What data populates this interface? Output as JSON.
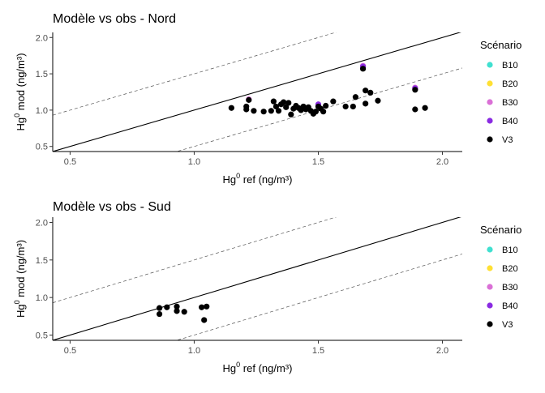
{
  "chart_data": [
    {
      "type": "scatter",
      "title": "Modèle vs obs - Nord",
      "xlabel": {
        "base": "Hg",
        "sup": "0",
        "rest": " ref (ng/m³)"
      },
      "ylabel": {
        "base": "Hg",
        "sup": "0",
        "rest": " mod (ng/m³)"
      },
      "xlim": [
        0.43,
        2.08
      ],
      "ylim": [
        0.43,
        2.07
      ],
      "xticks": [
        "0.5",
        "1.0",
        "1.5",
        "2.0"
      ],
      "yticks": [
        "0.5",
        "1.0",
        "1.5",
        "2.0"
      ],
      "reference_lines": [
        {
          "style": "solid",
          "slope": 1,
          "intercept": 0
        },
        {
          "style": "dashed",
          "slope": 1,
          "intercept": 0.5
        },
        {
          "style": "dashed",
          "slope": 1,
          "intercept": -0.5
        }
      ],
      "legend_title": "Scénario",
      "legend_position": "right",
      "series": [
        {
          "name": "B10",
          "color": "#40E0D0",
          "points": []
        },
        {
          "name": "B20",
          "color": "#FFE033",
          "points": []
        },
        {
          "name": "B30",
          "color": "#DA70D6",
          "points": [
            [
              1.68,
              1.61
            ],
            [
              1.22,
              1.15
            ],
            [
              1.89,
              1.31
            ]
          ]
        },
        {
          "name": "B40",
          "color": "#8A2BE2",
          "points": [
            [
              1.68,
              1.6
            ],
            [
              1.89,
              1.3
            ],
            [
              1.5,
              1.08
            ]
          ]
        },
        {
          "name": "V3",
          "color": "#000000",
          "points": [
            [
              1.15,
              1.03
            ],
            [
              1.21,
              1.05
            ],
            [
              1.21,
              1.01
            ],
            [
              1.22,
              1.14
            ],
            [
              1.24,
              0.99
            ],
            [
              1.28,
              0.98
            ],
            [
              1.31,
              0.99
            ],
            [
              1.32,
              1.12
            ],
            [
              1.33,
              1.05
            ],
            [
              1.34,
              0.99
            ],
            [
              1.35,
              1.08
            ],
            [
              1.36,
              1.11
            ],
            [
              1.37,
              1.04
            ],
            [
              1.38,
              1.1
            ],
            [
              1.39,
              0.94
            ],
            [
              1.4,
              1.02
            ],
            [
              1.41,
              1.06
            ],
            [
              1.42,
              1.03
            ],
            [
              1.43,
              1.0
            ],
            [
              1.44,
              1.05
            ],
            [
              1.45,
              1.01
            ],
            [
              1.46,
              1.04
            ],
            [
              1.47,
              0.99
            ],
            [
              1.48,
              0.95
            ],
            [
              1.49,
              0.98
            ],
            [
              1.5,
              1.05
            ],
            [
              1.51,
              1.02
            ],
            [
              1.52,
              0.98
            ],
            [
              1.53,
              1.06
            ],
            [
              1.56,
              1.12
            ],
            [
              1.61,
              1.05
            ],
            [
              1.64,
              1.05
            ],
            [
              1.65,
              1.18
            ],
            [
              1.68,
              1.57
            ],
            [
              1.69,
              1.27
            ],
            [
              1.69,
              1.09
            ],
            [
              1.71,
              1.24
            ],
            [
              1.74,
              1.13
            ],
            [
              1.89,
              1.28
            ],
            [
              1.89,
              1.01
            ],
            [
              1.93,
              1.03
            ]
          ]
        }
      ]
    },
    {
      "type": "scatter",
      "title": "Modèle vs obs - Sud",
      "xlabel": {
        "base": "Hg",
        "sup": "0",
        "rest": " ref (ng/m³)"
      },
      "ylabel": {
        "base": "Hg",
        "sup": "0",
        "rest": " mod (ng/m³)"
      },
      "xlim": [
        0.43,
        2.08
      ],
      "ylim": [
        0.43,
        2.07
      ],
      "xticks": [
        "0.5",
        "1.0",
        "1.5",
        "2.0"
      ],
      "yticks": [
        "0.5",
        "1.0",
        "1.5",
        "2.0"
      ],
      "reference_lines": [
        {
          "style": "solid",
          "slope": 1,
          "intercept": 0
        },
        {
          "style": "dashed",
          "slope": 1,
          "intercept": 0.5
        },
        {
          "style": "dashed",
          "slope": 1,
          "intercept": -0.5
        }
      ],
      "legend_title": "Scénario",
      "legend_position": "right",
      "series": [
        {
          "name": "B10",
          "color": "#40E0D0",
          "points": []
        },
        {
          "name": "B20",
          "color": "#FFE033",
          "points": []
        },
        {
          "name": "B30",
          "color": "#DA70D6",
          "points": []
        },
        {
          "name": "B40",
          "color": "#8A2BE2",
          "points": []
        },
        {
          "name": "V3",
          "color": "#000000",
          "points": [
            [
              0.86,
              0.86
            ],
            [
              0.86,
              0.78
            ],
            [
              0.89,
              0.87
            ],
            [
              0.93,
              0.88
            ],
            [
              0.93,
              0.82
            ],
            [
              0.96,
              0.81
            ],
            [
              1.03,
              0.87
            ],
            [
              1.04,
              0.7
            ],
            [
              1.05,
              0.88
            ]
          ]
        }
      ]
    }
  ]
}
